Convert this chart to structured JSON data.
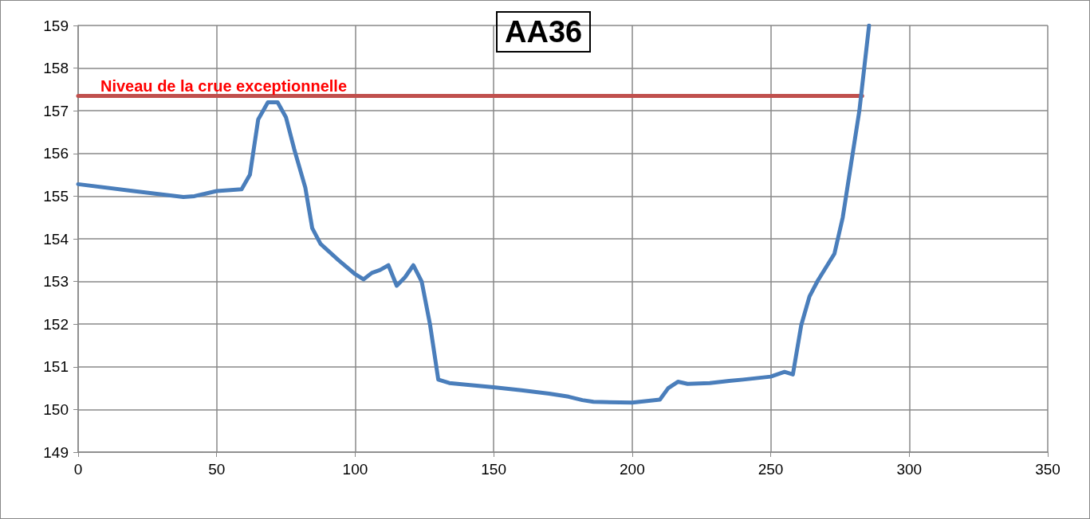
{
  "chart_data": {
    "type": "line",
    "title": "AA36",
    "series": [
      {
        "color": "#4a7ebb",
        "x": [
          0,
          20,
          38,
          42,
          50,
          59,
          62,
          65,
          68.5,
          72,
          75,
          78,
          82,
          84.5,
          87.5,
          94,
          100,
          103,
          106,
          109,
          112,
          115,
          118,
          121,
          124,
          127,
          130,
          134,
          140,
          150,
          160,
          170,
          177,
          182,
          186,
          200,
          210,
          213,
          216.5,
          220,
          228,
          235,
          240,
          250,
          255,
          258,
          261,
          264,
          267,
          273,
          276,
          279,
          282,
          285.5
        ],
        "values": [
          155.28,
          155.12,
          154.98,
          155.0,
          155.12,
          155.16,
          155.5,
          156.8,
          157.2,
          157.2,
          156.85,
          156.1,
          155.2,
          154.25,
          153.88,
          153.5,
          153.17,
          153.05,
          153.2,
          153.27,
          153.38,
          152.9,
          153.1,
          153.38,
          153.0,
          152.0,
          150.7,
          150.62,
          150.58,
          150.52,
          150.45,
          150.37,
          150.3,
          150.22,
          150.18,
          150.16,
          150.23,
          150.5,
          150.65,
          150.6,
          150.62,
          150.67,
          150.7,
          150.77,
          150.88,
          150.82,
          151.97,
          152.65,
          153.02,
          153.65,
          154.5,
          155.75,
          157.0,
          159.0
        ]
      },
      {
        "name": "Niveau de la crue exceptionnelle",
        "color": "#c0504d",
        "x": [
          0,
          283
        ],
        "values": [
          157.35,
          157.35
        ]
      }
    ],
    "xlim": [
      0,
      350
    ],
    "xticks": [
      0,
      50,
      100,
      150,
      200,
      250,
      300,
      350
    ],
    "ylim": [
      149,
      159
    ],
    "yticks": [
      149,
      150,
      151,
      152,
      153,
      154,
      155,
      156,
      157,
      158,
      159
    ],
    "grid": true,
    "legend": false,
    "marker": "none",
    "line_style": "solid"
  }
}
